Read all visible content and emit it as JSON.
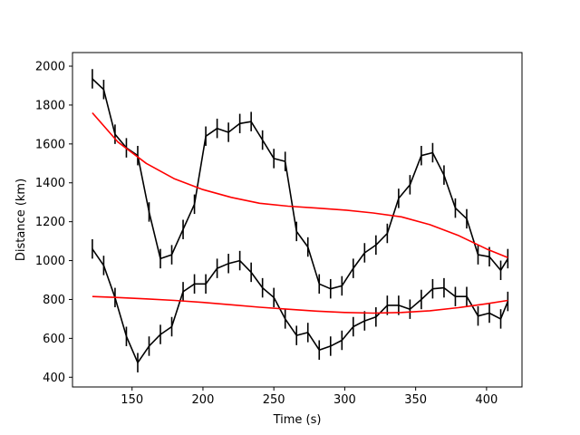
{
  "chart_data": {
    "type": "line",
    "title": "",
    "xlabel": "Time (s)",
    "ylabel": "Distance (km)",
    "xlim": [
      108,
      425
    ],
    "ylim": [
      350,
      2070
    ],
    "xticks": [
      150,
      200,
      250,
      300,
      350,
      400
    ],
    "yticks": [
      400,
      600,
      800,
      1000,
      1200,
      1400,
      1600,
      1800,
      2000
    ],
    "grid": false,
    "legend": "none",
    "series": [
      {
        "style": "errorbar",
        "color": "#000000",
        "x": [
          122,
          130,
          138,
          146,
          154,
          162,
          170,
          178,
          186,
          194,
          202,
          210,
          218,
          226,
          234,
          242,
          250,
          258,
          266,
          274,
          282,
          290,
          298,
          306,
          314,
          322,
          330,
          338,
          346,
          354,
          362,
          370,
          378,
          386,
          394,
          402,
          410,
          415
        ],
        "y": [
          1935,
          1880,
          1650,
          1580,
          1540,
          1250,
          1010,
          1030,
          1160,
          1290,
          1640,
          1680,
          1660,
          1705,
          1715,
          1620,
          1525,
          1510,
          1150,
          1070,
          880,
          855,
          870,
          960,
          1040,
          1080,
          1140,
          1320,
          1390,
          1540,
          1555,
          1440,
          1270,
          1215,
          1030,
          1020,
          950,
          1010
        ],
        "err": [
          50,
          50,
          50,
          50,
          50,
          50,
          50,
          50,
          50,
          50,
          50,
          50,
          50,
          50,
          50,
          50,
          50,
          50,
          50,
          50,
          50,
          50,
          50,
          50,
          50,
          50,
          50,
          50,
          50,
          50,
          50,
          50,
          50,
          50,
          50,
          50,
          50,
          50
        ]
      },
      {
        "style": "errorbar",
        "color": "#000000",
        "x": [
          122,
          130,
          138,
          146,
          154,
          162,
          170,
          178,
          186,
          194,
          202,
          210,
          218,
          226,
          234,
          242,
          250,
          258,
          266,
          274,
          282,
          290,
          298,
          306,
          314,
          322,
          330,
          338,
          346,
          354,
          362,
          370,
          378,
          386,
          394,
          402,
          410,
          415
        ],
        "y": [
          1060,
          975,
          810,
          610,
          475,
          560,
          620,
          660,
          840,
          880,
          880,
          960,
          985,
          1000,
          940,
          860,
          810,
          700,
          615,
          630,
          540,
          560,
          590,
          660,
          690,
          710,
          770,
          770,
          750,
          800,
          855,
          860,
          815,
          815,
          715,
          730,
          700,
          790
        ],
        "err": [
          50,
          50,
          50,
          50,
          50,
          50,
          50,
          50,
          50,
          50,
          50,
          50,
          50,
          50,
          50,
          50,
          50,
          50,
          50,
          50,
          50,
          50,
          50,
          50,
          50,
          50,
          50,
          50,
          50,
          50,
          50,
          50,
          50,
          50,
          50,
          50,
          50,
          50
        ]
      },
      {
        "style": "line",
        "color": "#ff0000",
        "x": [
          122,
          140,
          160,
          180,
          200,
          220,
          240,
          260,
          280,
          300,
          320,
          340,
          360,
          380,
          400,
          415
        ],
        "y": [
          1760,
          1610,
          1500,
          1420,
          1365,
          1325,
          1295,
          1280,
          1270,
          1260,
          1245,
          1225,
          1185,
          1130,
          1060,
          1015
        ]
      },
      {
        "style": "line",
        "color": "#ff0000",
        "x": [
          122,
          140,
          160,
          180,
          200,
          220,
          240,
          260,
          280,
          300,
          320,
          340,
          360,
          380,
          400,
          415
        ],
        "y": [
          815,
          810,
          803,
          795,
          785,
          773,
          760,
          750,
          740,
          733,
          730,
          733,
          742,
          758,
          778,
          795
        ]
      }
    ]
  }
}
